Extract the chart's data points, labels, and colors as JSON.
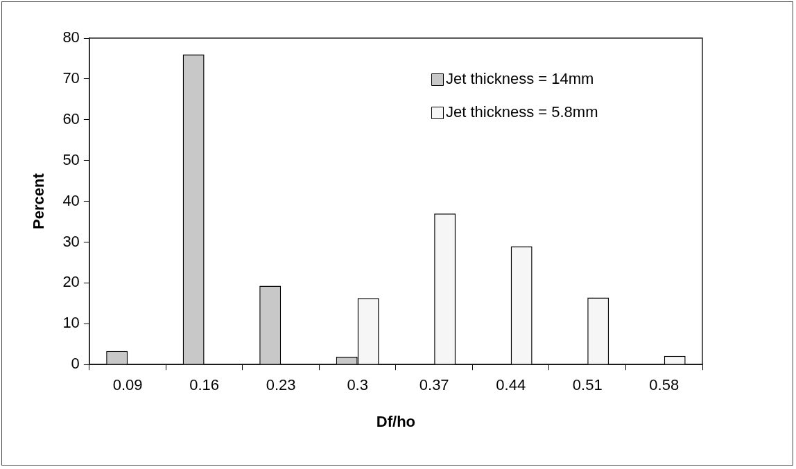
{
  "chart_data": {
    "type": "bar",
    "xlabel": "Df/ho",
    "ylabel": "Percent",
    "categories": [
      "0.09",
      "0.16",
      "0.23",
      "0.3",
      "0.37",
      "0.44",
      "0.51",
      "0.58"
    ],
    "series": [
      {
        "name": "Jet thickness = 14mm",
        "color": "#c8c8c8",
        "values": [
          3.3,
          76,
          19.3,
          1.9,
          0,
          0,
          0,
          0
        ]
      },
      {
        "name": "Jet thickness = 5.8mm",
        "color": "#f6f6f6",
        "values": [
          0,
          0,
          0,
          16.3,
          37,
          29,
          16.4,
          2.1
        ]
      }
    ],
    "ylim": [
      0,
      80
    ],
    "yticks": [
      0,
      10,
      20,
      30,
      40,
      50,
      60,
      70,
      80
    ],
    "grid": false,
    "legend": "top right"
  }
}
